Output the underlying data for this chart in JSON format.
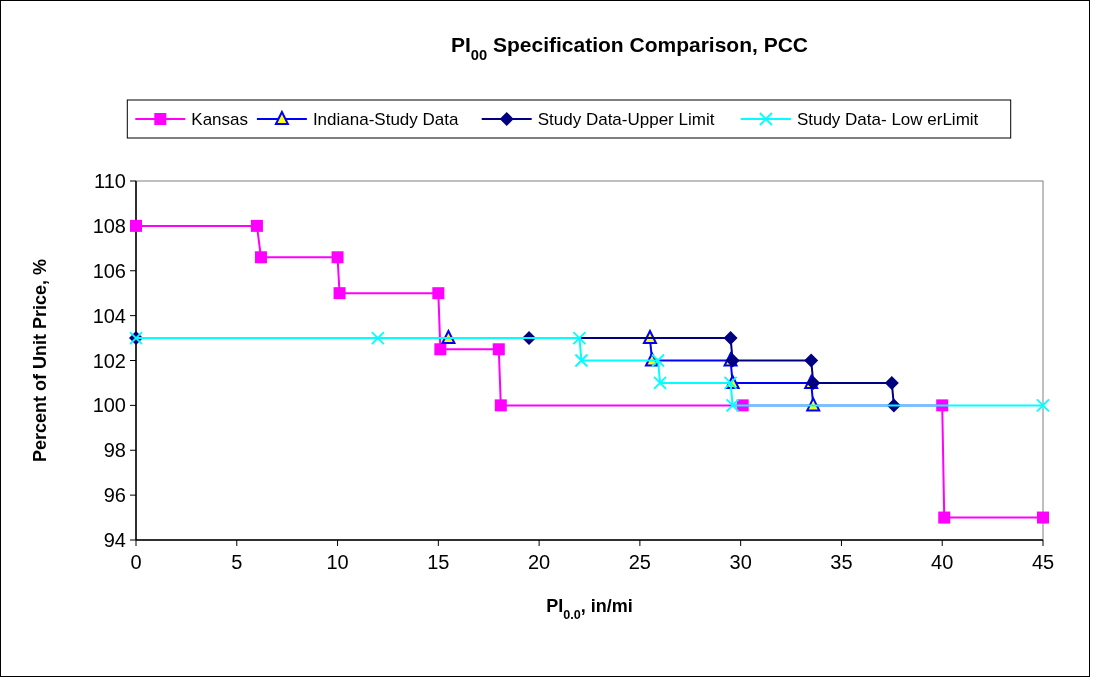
{
  "chart_data": {
    "type": "line",
    "title": "PI$_{00}$ Specification Comparison, PCC",
    "xlabel": "PI$_{0.0}$, in/mi",
    "ylabel": "Percent of Unit Price, %",
    "xlim": [
      0,
      45
    ],
    "xticks": [
      0,
      5,
      10,
      15,
      20,
      25,
      30,
      35,
      40,
      45
    ],
    "ylim": [
      94,
      110
    ],
    "yticks": [
      94,
      96,
      98,
      100,
      102,
      104,
      106,
      108,
      110
    ],
    "grid": false,
    "legend": "top",
    "line_style": "solid",
    "series": [
      {
        "name": "Kansas",
        "color": "#ff00ff",
        "marker": "square",
        "x": [
          0,
          6,
          6.2,
          10,
          10.1,
          15,
          15.1,
          18,
          18.1,
          30.1,
          40,
          40.1,
          45
        ],
        "values": [
          108,
          108,
          106.6,
          106.6,
          105,
          105,
          102.5,
          102.5,
          100,
          100,
          100,
          95,
          95
        ]
      },
      {
        "name": "Indiana-Study Data",
        "color": "#0000ff",
        "marker": "triangle",
        "x": [
          15.5,
          25.5,
          25.6,
          29.5,
          29.6,
          33.5,
          33.6
        ],
        "values": [
          103,
          103,
          102,
          102,
          101,
          101,
          100
        ]
      },
      {
        "name": "Study Data-Upper Limit",
        "color": "#000080",
        "marker": "diamond",
        "x": [
          0,
          19.5,
          29.5,
          29.6,
          33.5,
          33.6,
          37.5,
          37.6
        ],
        "values": [
          103,
          103,
          103,
          102,
          102,
          101,
          101,
          100
        ]
      },
      {
        "name": "Study Data- Low erLimit",
        "color": "#00ffff",
        "marker": "cross",
        "x": [
          0,
          12,
          22,
          22.1,
          25.9,
          26,
          29.5,
          29.6,
          45
        ],
        "values": [
          103,
          103,
          103,
          102,
          102,
          101,
          101,
          100,
          100
        ]
      }
    ]
  }
}
